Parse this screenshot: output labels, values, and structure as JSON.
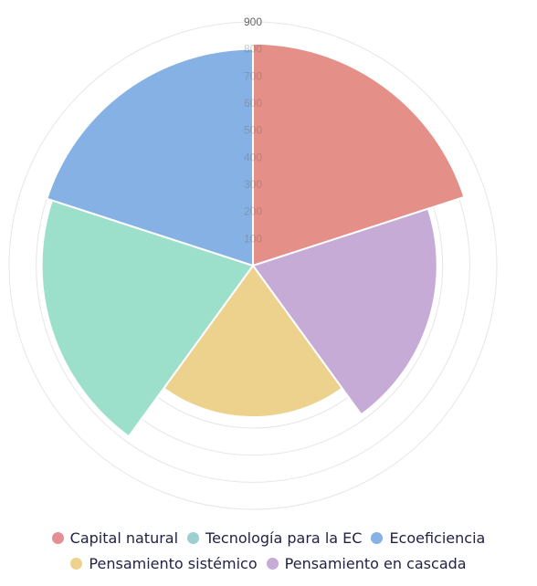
{
  "chart_data": {
    "type": "polarArea",
    "title": "",
    "r_ticks": [
      100,
      200,
      300,
      400,
      500,
      600,
      700,
      800,
      900
    ],
    "r_max": 900,
    "start_angle_deg": 0,
    "grid": true,
    "legend_position": "bottom",
    "categories": [
      "Ecoeficiencia",
      "Capital natural",
      "Pensamiento en cascada",
      "Pensamiento sistémico",
      "Tecnología para la EC"
    ],
    "values": [
      800,
      820,
      680,
      560,
      780
    ],
    "slice_order": [
      "Capital natural",
      "Pensamiento en cascada",
      "Pensamiento sistémico",
      "Tecnología para la EC",
      "Ecoeficiencia"
    ],
    "slice_values": [
      820,
      680,
      560,
      780,
      800
    ],
    "slice_colors": [
      "#e48f87",
      "#c5abd6",
      "#edd28d",
      "#9ce0cc",
      "#86b1e4"
    ]
  },
  "legend": {
    "row1": [
      {
        "label": "Capital natural",
        "color": "#e48f93"
      },
      {
        "label": "Tecnología para la EC",
        "color": "#9ccfd0"
      },
      {
        "label": "Ecoeficiencia",
        "color": "#86b1e4"
      }
    ],
    "row2": [
      {
        "label": "Pensamiento sistémico",
        "color": "#edd28d"
      },
      {
        "label": "Pensamiento en cascada",
        "color": "#c5abd6"
      }
    ]
  }
}
